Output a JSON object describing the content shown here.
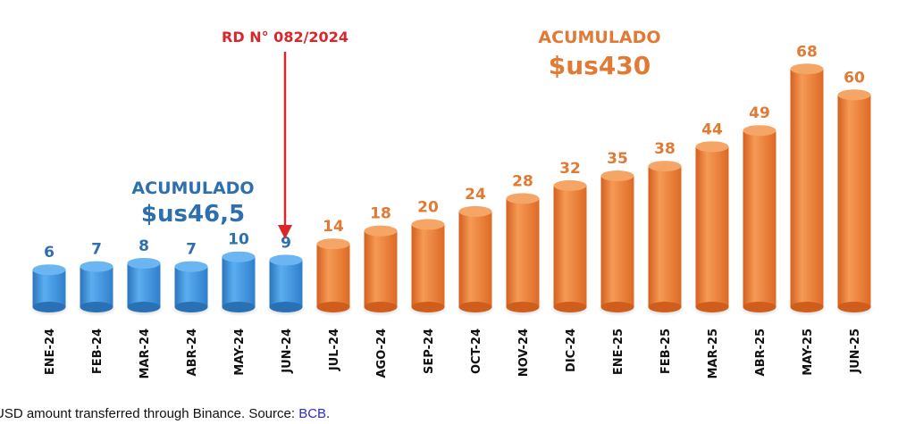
{
  "chart_data": {
    "type": "bar",
    "categories": [
      "ENE-24",
      "FEB-24",
      "MAR-24",
      "ABR-24",
      "MAY-24",
      "JUN-24",
      "JUL-24",
      "AGO-24",
      "SEP-24",
      "OCT-24",
      "NOV-24",
      "DIC-24",
      "ENE-25",
      "FEB-25",
      "MAR-25",
      "ABR-25",
      "MAY-25",
      "JUN-25"
    ],
    "values": [
      6,
      7,
      8,
      7,
      10,
      9,
      14,
      18,
      20,
      24,
      28,
      32,
      35,
      38,
      44,
      49,
      68,
      60
    ],
    "value_labels": [
      "6",
      "7",
      "8",
      "7",
      "10",
      "9",
      "14",
      "18",
      "20",
      "24",
      "28",
      "32",
      "35",
      "38",
      "44",
      "49",
      "68",
      "60"
    ],
    "ylim": [
      0,
      70
    ],
    "grid": false,
    "colors": {
      "before": "#3d8fd6",
      "after": "#e8762e",
      "before_label": "#2e6fb0",
      "after_label": "#e07a35",
      "event": "#d9262a"
    },
    "event_marker": {
      "label": "RD N° 082/2024",
      "category": "JUN-24"
    },
    "annotations": {
      "before": {
        "title": "ACUMULADO",
        "value": "$us46,5"
      },
      "after": {
        "title": "ACUMULADO",
        "value": "$us430"
      }
    }
  },
  "caption": {
    "text": "USD amount transferred through Binance. Source: ",
    "link": "BCB",
    "end": "."
  }
}
